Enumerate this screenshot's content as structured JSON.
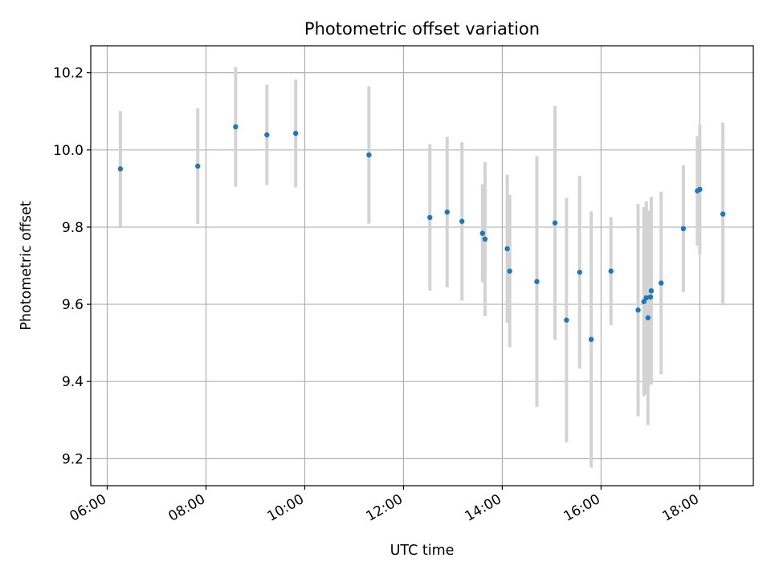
{
  "chart_data": {
    "type": "scatter",
    "title": "Photometric offset variation",
    "xlabel": "UTC time",
    "ylabel": "Photometric offset",
    "x_axis_type": "time",
    "xlim": [
      "05:40",
      "19:05"
    ],
    "ylim": [
      9.13,
      10.27
    ],
    "x_ticks": [
      "06:00",
      "08:00",
      "10:00",
      "12:00",
      "14:00",
      "16:00",
      "18:00"
    ],
    "y_ticks": [
      9.2,
      9.4,
      9.6,
      9.8,
      10.0,
      10.2
    ],
    "y_tick_labels": [
      "9.2",
      "9.4",
      "9.6",
      "9.8",
      "10.0",
      "10.2"
    ],
    "grid": true,
    "x_tick_label_rotation_deg": 30,
    "colors": {
      "points": "#1f77b4",
      "error_bars": "#d3d3d3",
      "grid": "#b0b0b0"
    },
    "points": [
      {
        "x": "06:16",
        "y": 9.951,
        "err": 0.15
      },
      {
        "x": "07:50",
        "y": 9.958,
        "err": 0.15
      },
      {
        "x": "08:36",
        "y": 10.06,
        "err": 0.155
      },
      {
        "x": "09:14",
        "y": 10.039,
        "err": 0.13
      },
      {
        "x": "09:49",
        "y": 10.043,
        "err": 0.14
      },
      {
        "x": "11:18",
        "y": 9.987,
        "err": 0.178
      },
      {
        "x": "12:32",
        "y": 9.825,
        "err": 0.19
      },
      {
        "x": "12:53",
        "y": 9.839,
        "err": 0.195
      },
      {
        "x": "13:11",
        "y": 9.815,
        "err": 0.205
      },
      {
        "x": "13:36",
        "y": 9.784,
        "err": 0.127
      },
      {
        "x": "13:39",
        "y": 9.769,
        "err": 0.2
      },
      {
        "x": "14:06",
        "y": 9.744,
        "err": 0.192
      },
      {
        "x": "14:09",
        "y": 9.686,
        "err": 0.197
      },
      {
        "x": "14:42",
        "y": 9.659,
        "err": 0.325
      },
      {
        "x": "15:04",
        "y": 9.811,
        "err": 0.303
      },
      {
        "x": "15:18",
        "y": 9.559,
        "err": 0.317
      },
      {
        "x": "15:34",
        "y": 9.683,
        "err": 0.25
      },
      {
        "x": "15:48",
        "y": 9.509,
        "err": 0.332
      },
      {
        "x": "16:12",
        "y": 9.686,
        "err": 0.14
      },
      {
        "x": "16:45",
        "y": 9.585,
        "err": 0.275
      },
      {
        "x": "16:52",
        "y": 9.607,
        "err": 0.245
      },
      {
        "x": "16:55",
        "y": 9.617,
        "err": 0.25
      },
      {
        "x": "16:57",
        "y": 9.565,
        "err": 0.278
      },
      {
        "x": "17:00",
        "y": 9.619,
        "err": 0.225
      },
      {
        "x": "17:01",
        "y": 9.635,
        "err": 0.243
      },
      {
        "x": "17:13",
        "y": 9.655,
        "err": 0.237
      },
      {
        "x": "17:40",
        "y": 9.796,
        "err": 0.164
      },
      {
        "x": "17:57",
        "y": 9.894,
        "err": 0.142
      },
      {
        "x": "18:00",
        "y": 9.898,
        "err": 0.168
      },
      {
        "x": "18:28",
        "y": 9.834,
        "err": 0.237
      }
    ]
  }
}
